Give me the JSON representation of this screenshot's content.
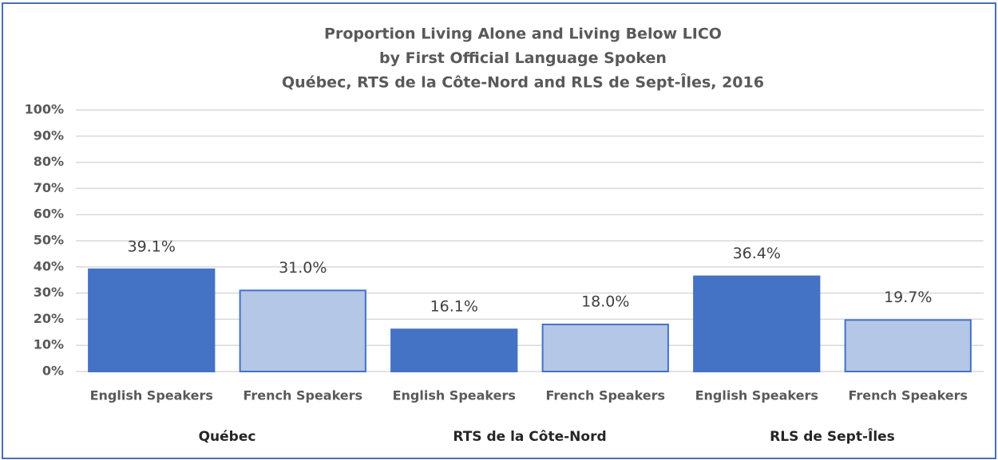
{
  "chart_data": {
    "type": "bar",
    "title": [
      "Proportion Living Alone and Living Below LICO",
      "by First Official Language Spoken",
      "Québec, RTS de la Côte-Nord and RLS de Sept-Îles, 2016"
    ],
    "categories": [
      "English Speakers",
      "French Speakers",
      "English Speakers",
      "French Speakers",
      "English Speakers",
      "French Speakers"
    ],
    "groups": [
      "Québec",
      "RTS de la Côte-Nord",
      "RLS de Sept-Îles"
    ],
    "values": [
      39.1,
      31.0,
      16.1,
      18.0,
      36.4,
      19.7
    ],
    "value_labels": [
      "39.1%",
      "31.0%",
      "16.1%",
      "18.0%",
      "36.4%",
      "19.7%"
    ],
    "colors": [
      "#4472c4",
      "#b4c7e7",
      "#4472c4",
      "#b4c7e7",
      "#4472c4",
      "#b4c7e7"
    ],
    "edgecolor": "#4472c4",
    "ylim": [
      0,
      100
    ],
    "yticks": [
      {
        "value": 0,
        "label": "0%"
      },
      {
        "value": 10,
        "label": "10%"
      },
      {
        "value": 20,
        "label": "20%"
      },
      {
        "value": 30,
        "label": "30%"
      },
      {
        "value": 40,
        "label": "40%"
      },
      {
        "value": 50,
        "label": "50%"
      },
      {
        "value": 60,
        "label": "60%"
      },
      {
        "value": 70,
        "label": "70%"
      },
      {
        "value": 80,
        "label": "80%"
      },
      {
        "value": 90,
        "label": "90%"
      },
      {
        "value": 100,
        "label": "100%"
      }
    ],
    "grid": true
  }
}
